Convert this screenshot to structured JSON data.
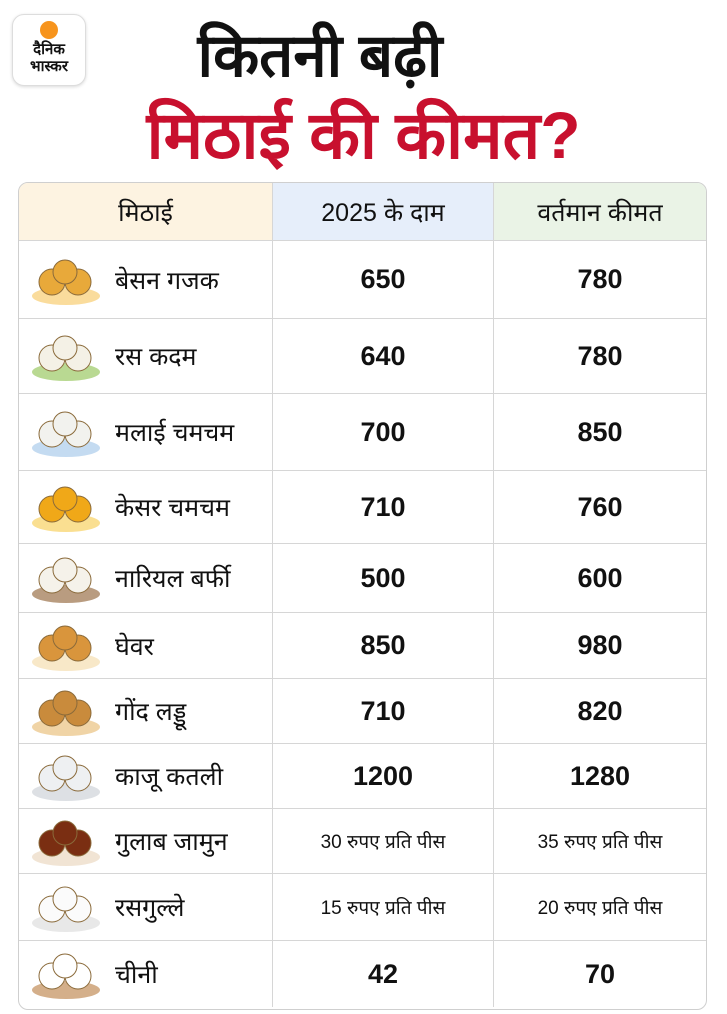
{
  "header": {
    "logo": [
      "दैनिक",
      "भास्कर"
    ],
    "title": [
      "कितनी बढ़ी",
      "मिठाई की कीमत?"
    ]
  },
  "table": {
    "columns": [
      "मिठाई",
      "2025 के दाम",
      "वर्तमान कीमत"
    ],
    "rows": [
      [
        "बेसन गजक",
        650,
        780
      ],
      [
        "रस कदम",
        640,
        780
      ],
      [
        "मलाई चमचम",
        700,
        850
      ],
      [
        "केसर चमचम",
        710,
        760
      ],
      [
        "नारियल बर्फी",
        500,
        600
      ],
      [
        "घेवर",
        850,
        980
      ],
      [
        "गोंद लड्डू",
        710,
        820
      ],
      [
        "काजू कतली",
        1200,
        1280
      ],
      [
        "गुलाब जामुन",
        "30 रुपए प्रति पीस",
        "35 रुपए प्रति पीस"
      ],
      [
        "रसगुल्ले",
        "15 रुपए प्रति पीस",
        "20 रुपए प्रति पीस"
      ],
      [
        "चीनी",
        42,
        70
      ]
    ]
  }
}
